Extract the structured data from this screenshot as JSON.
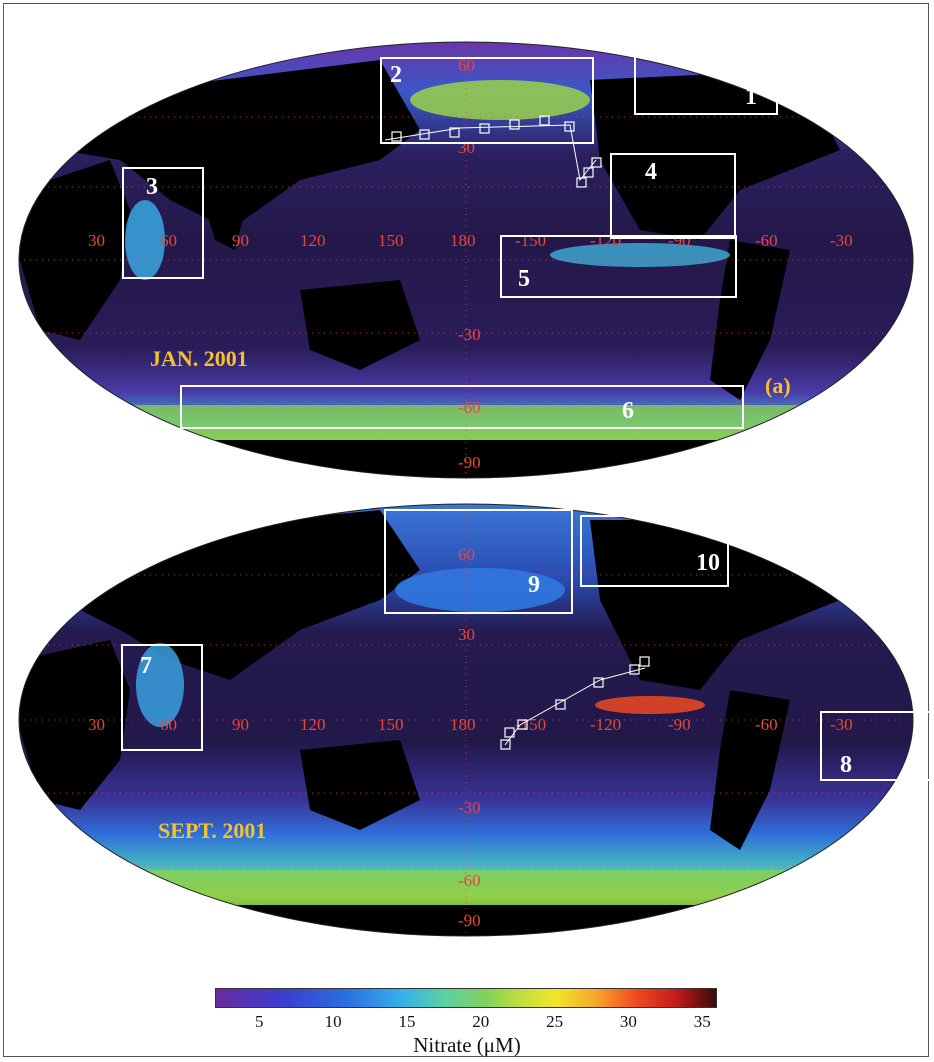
{
  "panel_a": {
    "title": "JAN. 2001",
    "letter": "(a)",
    "lon_labels": [
      "30",
      "60",
      "90",
      "120",
      "150",
      "180",
      "-150",
      "-120",
      "-90",
      "-60",
      "-30"
    ],
    "lat_labels": [
      "60",
      "30",
      "-30",
      "-60",
      "-90"
    ],
    "boxes": [
      "2",
      "1",
      "3",
      "4",
      "5",
      "6"
    ]
  },
  "panel_b": {
    "title": "SEPT. 2001",
    "lon_labels": [
      "30",
      "60",
      "90",
      "120",
      "150",
      "180",
      "-150",
      "-120",
      "-90",
      "-60",
      "-30"
    ],
    "lat_labels": [
      "60",
      "30",
      "-30",
      "-60",
      "-90"
    ],
    "boxes": [
      "9",
      "10",
      "7",
      "8"
    ]
  },
  "colorbar": {
    "label": "Nitrate (μM)",
    "ticks": [
      "5",
      "10",
      "15",
      "20",
      "25",
      "30",
      "35"
    ],
    "tick_values": [
      5,
      10,
      15,
      20,
      25,
      30,
      35
    ],
    "range": [
      2,
      36
    ]
  },
  "colors": {
    "ocean_low": "#3a1f66",
    "ocean_mid": "#2f6fd8",
    "ocean_high": "#7fd35a",
    "land": "#000000",
    "grid_label": "#e8473a",
    "title": "#f2c233"
  }
}
